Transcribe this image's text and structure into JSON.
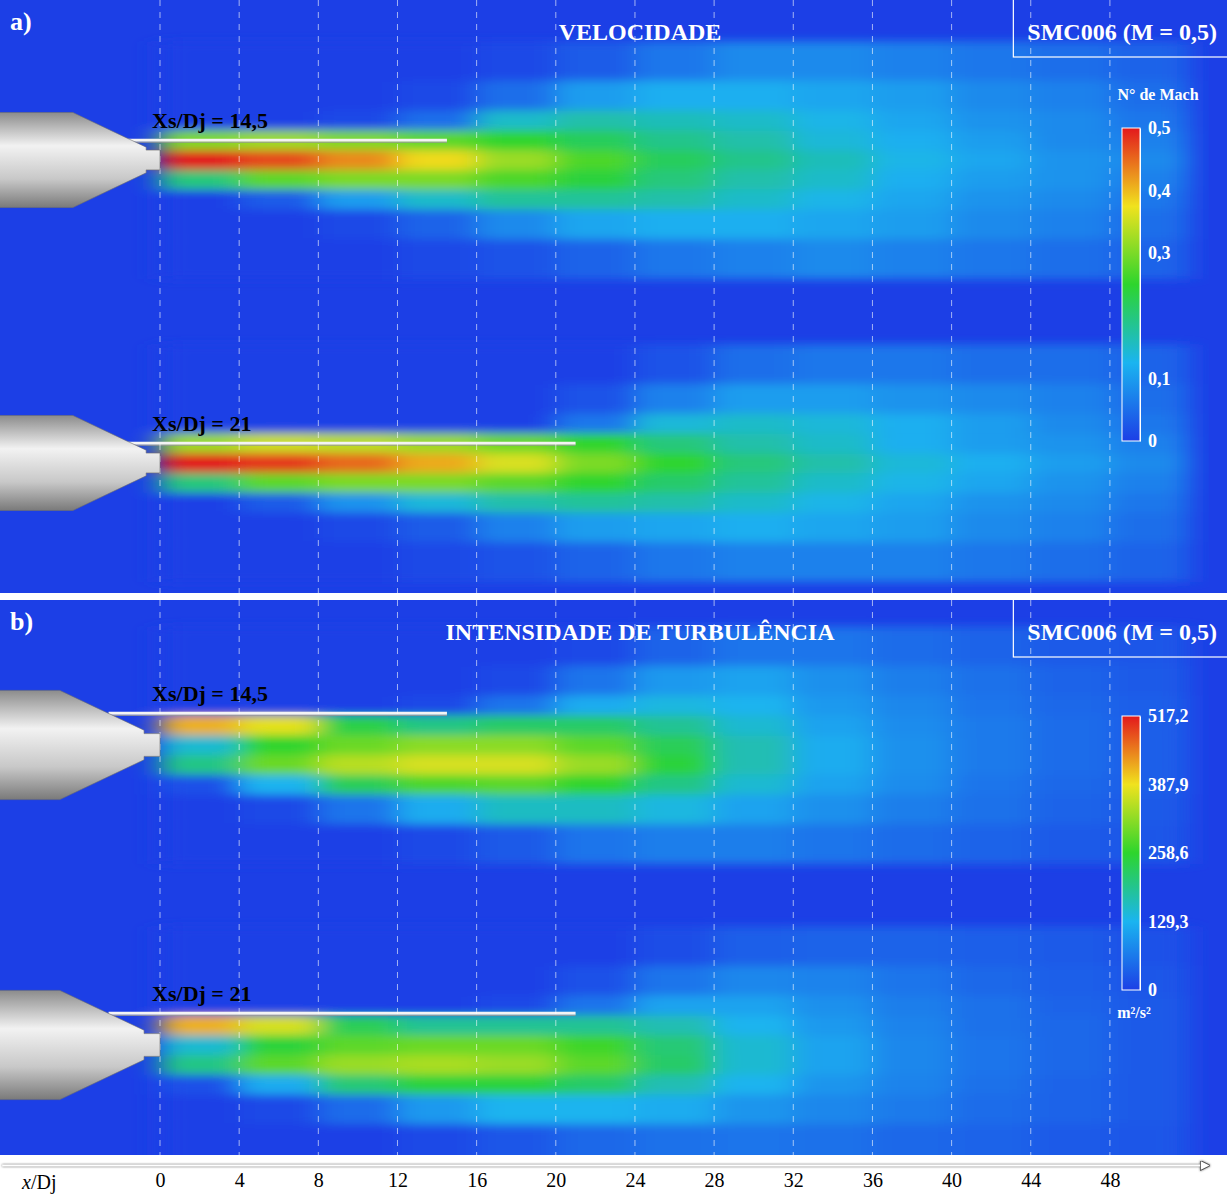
{
  "chart_data": [
    {
      "type": "heatmap",
      "label": "a)",
      "title": "VELOCIDADE",
      "subtitle": "SMC006 (M = 0,5)",
      "xlim": [
        -8,
        53
      ],
      "xticks": [
        0,
        4,
        8,
        12,
        16,
        20,
        24,
        28,
        32,
        36,
        40,
        44,
        48
      ],
      "grid": true,
      "tick_labels": false,
      "x_bins": [
        0,
        4,
        8,
        12,
        16,
        20,
        24,
        28,
        32,
        36,
        40,
        44,
        48,
        52
      ],
      "y_bins": [
        6,
        4,
        2.5,
        1.5,
        0.5,
        -0.5,
        -1.5,
        -2.5,
        -4,
        -6
      ],
      "series": [
        {
          "name": "Xs/Dj = 14,5",
          "shield_length": 14.5,
          "cells": [
            [
              0,
              0,
              0,
              0,
              0.01,
              0.03,
              0.06,
              0.08,
              0.08,
              0.07,
              0.06,
              0.05,
              0.04
            ],
            [
              0,
              0,
              0,
              0.01,
              0.05,
              0.1,
              0.12,
              0.12,
              0.11,
              0.1,
              0.08,
              0.07,
              0.05
            ],
            [
              0,
              0,
              0.01,
              0.05,
              0.15,
              0.17,
              0.16,
              0.15,
              0.13,
              0.11,
              0.09,
              0.08,
              0.06
            ],
            [
              0.3,
              0.32,
              0.3,
              0.28,
              0.25,
              0.22,
              0.19,
              0.17,
              0.14,
              0.12,
              0.1,
              0.08,
              0.07
            ],
            [
              0.5,
              0.47,
              0.43,
              0.38,
              0.32,
              0.27,
              0.22,
              0.19,
              0.16,
              0.13,
              0.11,
              0.09,
              0.08
            ],
            [
              0.2,
              0.28,
              0.3,
              0.3,
              0.27,
              0.24,
              0.2,
              0.17,
              0.15,
              0.12,
              0.1,
              0.09,
              0.07
            ],
            [
              0,
              0.03,
              0.1,
              0.15,
              0.18,
              0.18,
              0.17,
              0.15,
              0.13,
              0.11,
              0.09,
              0.08,
              0.06
            ],
            [
              0,
              0,
              0.01,
              0.04,
              0.08,
              0.11,
              0.12,
              0.12,
              0.11,
              0.1,
              0.08,
              0.07,
              0.05
            ],
            [
              0,
              0,
              0,
              0.01,
              0.02,
              0.04,
              0.06,
              0.07,
              0.08,
              0.07,
              0.06,
              0.05,
              0.04
            ]
          ]
        },
        {
          "name": "Xs/Dj = 21",
          "shield_length": 21,
          "cells": [
            [
              0,
              0,
              0,
              0,
              0,
              0,
              0.02,
              0.05,
              0.06,
              0.06,
              0.05,
              0.05,
              0.04
            ],
            [
              0,
              0,
              0,
              0,
              0,
              0.02,
              0.07,
              0.1,
              0.1,
              0.09,
              0.08,
              0.07,
              0.05
            ],
            [
              0,
              0,
              0,
              0,
              0,
              0.06,
              0.14,
              0.15,
              0.14,
              0.12,
              0.1,
              0.08,
              0.06
            ],
            [
              0.32,
              0.35,
              0.34,
              0.32,
              0.29,
              0.25,
              0.2,
              0.17,
              0.15,
              0.12,
              0.1,
              0.09,
              0.07
            ],
            [
              0.5,
              0.48,
              0.45,
              0.41,
              0.36,
              0.3,
              0.25,
              0.2,
              0.17,
              0.14,
              0.12,
              0.1,
              0.08
            ],
            [
              0.2,
              0.28,
              0.3,
              0.3,
              0.28,
              0.25,
              0.21,
              0.18,
              0.15,
              0.13,
              0.11,
              0.09,
              0.07
            ],
            [
              0,
              0.03,
              0.09,
              0.14,
              0.17,
              0.18,
              0.17,
              0.15,
              0.13,
              0.11,
              0.09,
              0.08,
              0.06
            ],
            [
              0,
              0,
              0.01,
              0.03,
              0.07,
              0.1,
              0.11,
              0.12,
              0.11,
              0.1,
              0.08,
              0.07,
              0.05
            ],
            [
              0,
              0,
              0,
              0.01,
              0.02,
              0.04,
              0.06,
              0.07,
              0.07,
              0.07,
              0.06,
              0.05,
              0.04
            ]
          ]
        }
      ],
      "colorbar": {
        "title": "N° de Mach",
        "range": [
          0,
          0.5
        ],
        "ticks": [
          {
            "value": 0.5,
            "label": "0,5"
          },
          {
            "value": 0.4,
            "label": "0,4"
          },
          {
            "value": 0.3,
            "label": "0,3"
          },
          {
            "value": 0.1,
            "label": "0,1"
          },
          0
        ],
        "colors": [
          "#1c3fe6",
          "#1ab4f0",
          "#2dd52d",
          "#f0e21e",
          "#e3191c"
        ]
      }
    },
    {
      "type": "heatmap",
      "label": "b)",
      "title": "INTENSIDADE DE TURBULÊNCIA",
      "subtitle": "SMC006 (M = 0,5)",
      "xlabel": "x/Dj",
      "xlim": [
        -8,
        53
      ],
      "xticks": [
        0,
        4,
        8,
        12,
        16,
        20,
        24,
        28,
        32,
        36,
        40,
        44,
        48
      ],
      "grid": true,
      "tick_labels": "x",
      "x_bins": [
        0,
        4,
        8,
        12,
        16,
        20,
        24,
        28,
        32,
        36,
        40,
        44,
        48,
        52
      ],
      "y_bins": [
        6,
        4,
        2.5,
        1.5,
        0.5,
        -0.5,
        -1.5,
        -2.5,
        -4,
        -6
      ],
      "series": [
        {
          "name": "Xs/Dj = 14,5",
          "shield_length": 14.5,
          "cells": [
            [
              0,
              0,
              0,
              0,
              0,
              10,
              40,
              60,
              60,
              50,
              40,
              30,
              25
            ],
            [
              0,
              0,
              0,
              0,
              10,
              60,
              100,
              110,
              90,
              70,
              55,
              40,
              30
            ],
            [
              0,
              0,
              0,
              10,
              60,
              120,
              140,
              130,
              100,
              80,
              60,
              45,
              35
            ],
            [
              420,
              380,
              240,
              200,
              220,
              220,
              190,
              150,
              110,
              85,
              65,
              50,
              35
            ],
            [
              150,
              260,
              300,
              320,
              320,
              290,
              230,
              170,
              120,
              90,
              65,
              50,
              35
            ],
            [
              200,
              300,
              350,
              370,
              370,
              330,
              250,
              170,
              120,
              90,
              65,
              50,
              35
            ],
            [
              20,
              130,
              230,
              280,
              290,
              260,
              200,
              150,
              110,
              85,
              60,
              45,
              35
            ],
            [
              0,
              10,
              60,
              120,
              160,
              160,
              140,
              110,
              90,
              70,
              55,
              40,
              30
            ],
            [
              0,
              0,
              0,
              10,
              30,
              60,
              70,
              70,
              60,
              50,
              40,
              30,
              25
            ]
          ]
        },
        {
          "name": "Xs/Dj = 21",
          "shield_length": 21,
          "cells": [
            [
              0,
              0,
              0,
              0,
              0,
              0,
              15,
              35,
              40,
              40,
              35,
              30,
              20
            ],
            [
              0,
              0,
              0,
              0,
              0,
              20,
              60,
              80,
              75,
              60,
              45,
              35,
              25
            ],
            [
              0,
              0,
              0,
              0,
              10,
              60,
              110,
              110,
              90,
              70,
              55,
              40,
              30
            ],
            [
              420,
              370,
              230,
              190,
              190,
              190,
              170,
              130,
              100,
              75,
              55,
              45,
              30
            ],
            [
              150,
              250,
              290,
              300,
              300,
              270,
              210,
              150,
              110,
              80,
              60,
              45,
              30
            ],
            [
              200,
              290,
              330,
              340,
              330,
              290,
              220,
              150,
              110,
              80,
              60,
              45,
              30
            ],
            [
              20,
              120,
              210,
              250,
              250,
              220,
              170,
              130,
              95,
              75,
              55,
              40,
              30
            ],
            [
              0,
              10,
              50,
              100,
              130,
              130,
              120,
              95,
              80,
              65,
              50,
              40,
              30
            ],
            [
              0,
              0,
              0,
              10,
              25,
              45,
              55,
              60,
              55,
              45,
              40,
              30,
              25
            ]
          ]
        }
      ],
      "colorbar": {
        "unit": "m²/s²",
        "range": [
          0,
          517.2
        ],
        "ticks": [
          {
            "value": 517.2,
            "label": "517,2"
          },
          {
            "value": 387.9,
            "label": "387,9"
          },
          {
            "value": 258.6,
            "label": "258,6"
          },
          {
            "value": 129.3,
            "label": "129,3"
          },
          0
        ],
        "colors": [
          "#1c3fe6",
          "#1ab4f0",
          "#2dd52d",
          "#f0e21e",
          "#e3191c"
        ]
      }
    }
  ]
}
